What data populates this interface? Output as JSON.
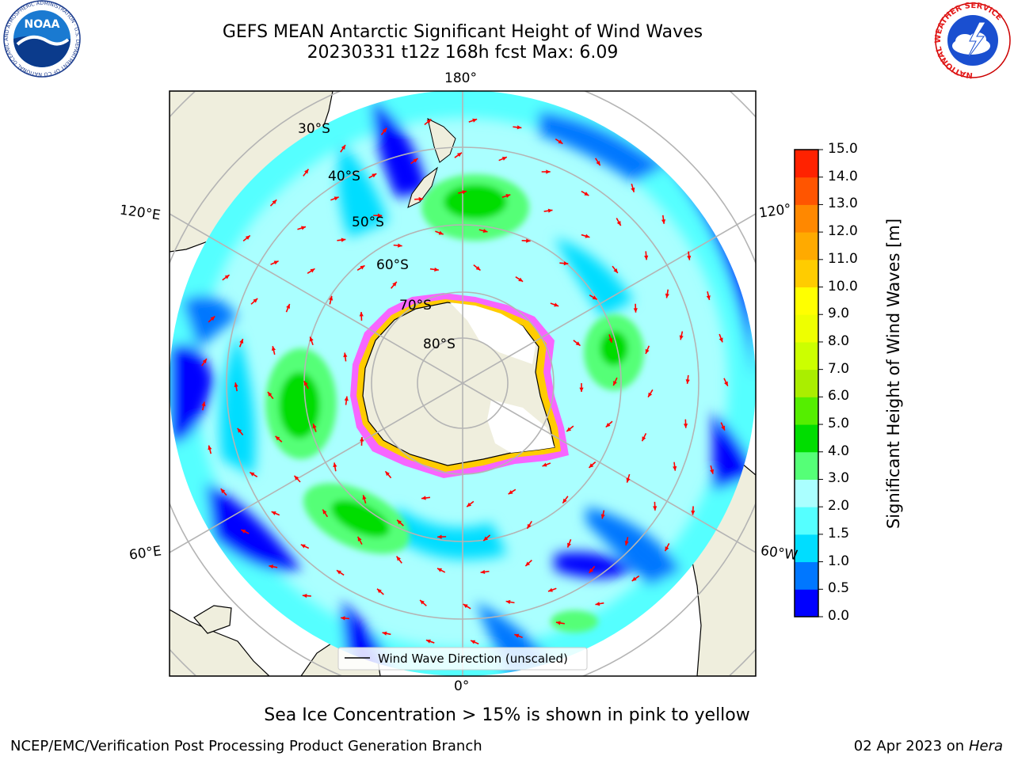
{
  "header": {
    "title_line1": "GEFS MEAN Antarctic Significant Height of Wind Waves",
    "title_line2": "20230331 t12z 168h fcst   Max: 6.09"
  },
  "logos": {
    "left_logo_text": "NOAA",
    "left_logo_ring": "NATIONAL OCEANIC AND ATMOSPHERIC ADMINISTRATION · U.S. DEPARTMENT OF COMMERCE",
    "right_logo_ring": "NATIONAL WEATHER SERVICE",
    "icons": [
      "noaa-logo",
      "nws-logo"
    ]
  },
  "map": {
    "projection": "south-polar-stereographic",
    "lon_labels": {
      "top": "180°",
      "bottom": "0°",
      "upper_left": "120°E",
      "upper_right": "120°",
      "lower_left": "60°E",
      "lower_right": "60°W"
    },
    "lat_labels": [
      "30°S",
      "40°S",
      "50°S",
      "60°S",
      "70°S",
      "80°S"
    ],
    "legend_label": "Wind Wave Direction (unscaled)",
    "arrow_color": "#ff0000",
    "land_color": "#efeedd",
    "grid_color": "#b4b4b4"
  },
  "colorbar": {
    "label": "Significant Height of Wind Waves [m]",
    "ticks": [
      "0.0",
      "0.5",
      "1.0",
      "1.5",
      "2.0",
      "3.0",
      "4.0",
      "5.0",
      "6.0",
      "7.0",
      "8.0",
      "9.0",
      "10.0",
      "11.0",
      "12.0",
      "13.0",
      "14.0",
      "15.0"
    ],
    "colors": [
      "#0000ff",
      "#0077ff",
      "#00ddff",
      "#55ffff",
      "#aaffff",
      "#55ff77",
      "#00dd00",
      "#55ee00",
      "#aaee00",
      "#ccff00",
      "#eeff00",
      "#ffff00",
      "#ffcc00",
      "#ffaa00",
      "#ff8800",
      "#ff5500",
      "#ff2200"
    ]
  },
  "notes": {
    "ice_note": "Sea Ice Concentration > 15% is shown in pink to yellow",
    "footer_left": "NCEP/EMC/Verification Post Processing Product Generation Branch",
    "footer_date": "02 Apr 2023 on",
    "footer_machine": "Hera"
  }
}
